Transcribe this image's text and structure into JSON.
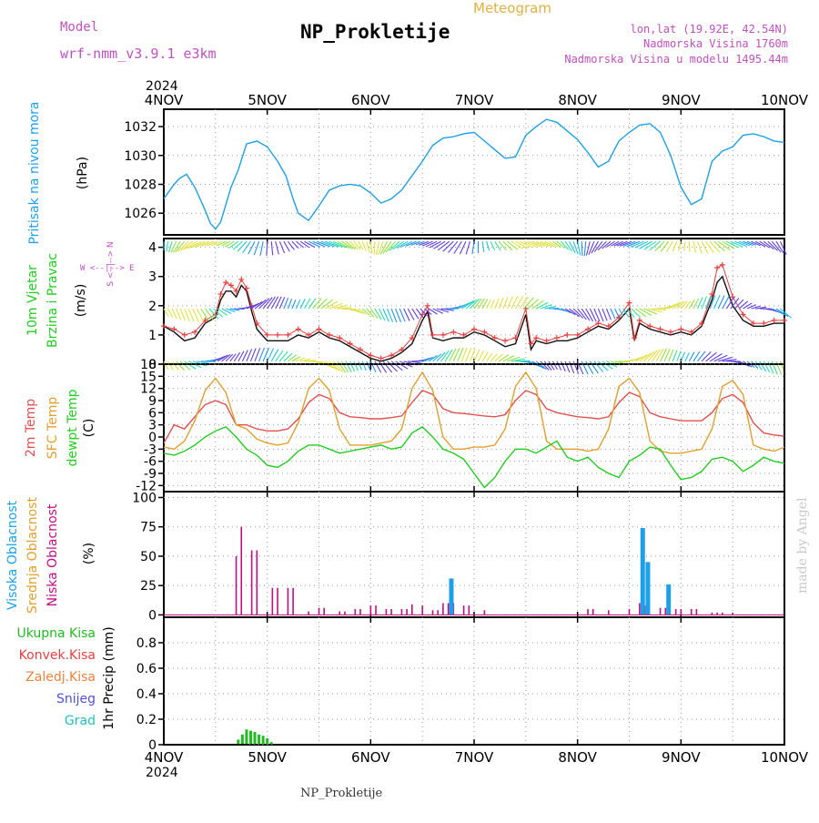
{
  "header": {
    "model_label": "Model",
    "model_name": "wrf-nmm_v3.9.1 e3km",
    "product": "Meteogram",
    "station": "NP_Prokletije",
    "lonlat": "lon,lat (19.92E, 42.54N)",
    "elevation": "Nadmorska Visina 1760m",
    "model_elevation": "Nadmorska Visina u modelu 1495.44m",
    "credit": "made by Angel",
    "year": "2024",
    "footer_station": "NP_Prokletije"
  },
  "colors": {
    "pressure": "#1ea0e8",
    "wind_label": "#22cc22",
    "wind_speed_obs": "#111111",
    "wind_gust": "#e84040",
    "temp2m": "#e05050",
    "sfc_temp": "#e0a030",
    "dewpt": "#22cc22",
    "high_cloud": "#1ea0e8",
    "mid_cloud": "#e0a030",
    "low_cloud": "#c01080",
    "total_precip": "#22bb22",
    "conv_precip": "#e84040",
    "frozen_precip": "#f08040",
    "snow": "#5050e0",
    "hail": "#20c0c0",
    "title_purple": "#c050c0",
    "meteogram_orange": "#e0b040"
  },
  "chart_data": [
    {
      "type": "line",
      "title": "NP_Prokletije",
      "ylabel_left": "Pritisak na nivou mora",
      "ylabel_units": "(hPa)",
      "x_tick_labels": [
        "4NOV",
        "5NOV",
        "6NOV",
        "7NOV",
        "8NOV",
        "9NOV",
        "10NOV"
      ],
      "x_range_days": [
        0,
        6
      ],
      "ylim": [
        1024.5,
        1033.2
      ],
      "yticks": [
        1026,
        1028,
        1030,
        1032
      ],
      "grid": true,
      "series": [
        {
          "name": "Pritisak na nivou mora",
          "x": [
            0,
            0.1,
            0.15,
            0.22,
            0.3,
            0.4,
            0.45,
            0.5,
            0.55,
            0.6,
            0.65,
            0.72,
            0.8,
            0.9,
            1.0,
            1.1,
            1.18,
            1.25,
            1.3,
            1.4,
            1.5,
            1.6,
            1.7,
            1.8,
            1.9,
            2.0,
            2.1,
            2.2,
            2.3,
            2.4,
            2.5,
            2.6,
            2.7,
            2.8,
            2.9,
            3.0,
            3.1,
            3.2,
            3.3,
            3.4,
            3.5,
            3.6,
            3.7,
            3.8,
            3.9,
            4.0,
            4.1,
            4.2,
            4.3,
            4.4,
            4.5,
            4.6,
            4.7,
            4.8,
            4.9,
            5.0,
            5.1,
            5.2,
            5.3,
            5.4,
            5.5,
            5.6,
            5.7,
            5.8,
            5.9,
            6.0
          ],
          "y": [
            1027.0,
            1028.0,
            1028.4,
            1028.7,
            1027.8,
            1026.2,
            1025.3,
            1024.9,
            1025.4,
            1026.6,
            1027.8,
            1029.0,
            1030.8,
            1031.0,
            1030.6,
            1029.6,
            1028.6,
            1027.0,
            1026.0,
            1025.5,
            1026.5,
            1027.6,
            1027.9,
            1028.0,
            1027.9,
            1027.4,
            1026.7,
            1027.0,
            1027.6,
            1028.6,
            1029.6,
            1030.7,
            1031.2,
            1031.3,
            1031.5,
            1031.6,
            1031.0,
            1030.4,
            1029.8,
            1029.9,
            1031.4,
            1032.0,
            1032.5,
            1032.3,
            1031.7,
            1031.1,
            1030.2,
            1029.2,
            1029.6,
            1031.0,
            1031.6,
            1032.1,
            1032.2,
            1031.6,
            1030.0,
            1027.8,
            1026.6,
            1027.0,
            1029.6,
            1030.3,
            1030.6,
            1031.4,
            1031.5,
            1031.3,
            1031.0,
            1030.9
          ]
        }
      ]
    },
    {
      "type": "line",
      "ylabel_left": "10m Vjetar Brzina i Pravac",
      "ylabel_units": "(m/s)",
      "compass": "W <--|--> E",
      "compass_ns": "S <--|--> N",
      "ylim": [
        0,
        4.3
      ],
      "yticks": [
        0,
        1,
        2,
        3,
        4
      ],
      "grid": true,
      "series": [
        {
          "name": "wind speed",
          "x": [
            0,
            0.1,
            0.2,
            0.3,
            0.4,
            0.5,
            0.55,
            0.6,
            0.65,
            0.7,
            0.75,
            0.8,
            0.85,
            0.9,
            1.0,
            1.1,
            1.2,
            1.3,
            1.4,
            1.5,
            1.6,
            1.7,
            1.8,
            1.9,
            2.0,
            2.1,
            2.2,
            2.3,
            2.4,
            2.5,
            2.55,
            2.6,
            2.7,
            2.8,
            2.9,
            3.0,
            3.1,
            3.2,
            3.3,
            3.4,
            3.5,
            3.55,
            3.6,
            3.7,
            3.8,
            3.9,
            4.0,
            4.1,
            4.2,
            4.3,
            4.4,
            4.5,
            4.55,
            4.6,
            4.7,
            4.8,
            4.9,
            5.0,
            5.1,
            5.2,
            5.3,
            5.35,
            5.4,
            5.5,
            5.6,
            5.7,
            5.8,
            5.9,
            6.0
          ],
          "y": [
            1.3,
            1.1,
            0.8,
            0.9,
            1.4,
            1.6,
            2.2,
            2.5,
            2.5,
            2.3,
            2.7,
            2.5,
            1.8,
            1.2,
            0.8,
            0.8,
            0.8,
            1.0,
            0.9,
            1.1,
            0.9,
            0.8,
            0.6,
            0.4,
            0.2,
            0.1,
            0.2,
            0.4,
            0.7,
            1.5,
            1.8,
            0.9,
            0.8,
            0.9,
            0.9,
            1.1,
            1.0,
            0.8,
            0.6,
            0.7,
            1.7,
            0.5,
            0.8,
            0.7,
            0.8,
            0.8,
            0.9,
            1.1,
            1.3,
            1.2,
            1.5,
            1.9,
            0.8,
            1.4,
            1.2,
            1.1,
            1.0,
            1.1,
            1.0,
            1.3,
            2.2,
            2.8,
            3.0,
            2.0,
            1.5,
            1.3,
            1.3,
            1.4,
            1.4
          ]
        },
        {
          "name": "gust markers",
          "x": [
            0,
            0.1,
            0.2,
            0.3,
            0.4,
            0.5,
            0.55,
            0.6,
            0.65,
            0.7,
            0.75,
            0.8,
            0.85,
            0.9,
            1.0,
            1.1,
            1.2,
            1.3,
            1.4,
            1.5,
            1.6,
            1.7,
            1.8,
            1.9,
            2.0,
            2.1,
            2.2,
            2.3,
            2.4,
            2.5,
            2.55,
            2.6,
            2.7,
            2.8,
            2.9,
            3.0,
            3.1,
            3.2,
            3.3,
            3.4,
            3.5,
            3.55,
            3.6,
            3.7,
            3.8,
            3.9,
            4.0,
            4.1,
            4.2,
            4.3,
            4.4,
            4.5,
            4.55,
            4.6,
            4.7,
            4.8,
            4.9,
            5.0,
            5.1,
            5.2,
            5.3,
            5.35,
            5.4,
            5.5,
            5.6,
            5.7,
            5.8,
            5.9,
            6.0
          ],
          "y": [
            1.3,
            1.2,
            1.0,
            1.1,
            1.5,
            1.7,
            2.4,
            2.8,
            2.7,
            2.5,
            2.9,
            2.6,
            2.0,
            1.4,
            1.0,
            1.0,
            1.0,
            1.2,
            1.0,
            1.2,
            1.0,
            0.9,
            0.7,
            0.5,
            0.3,
            0.2,
            0.3,
            0.5,
            0.9,
            1.7,
            2.0,
            1.0,
            1.0,
            1.1,
            1.0,
            1.2,
            1.1,
            0.9,
            0.8,
            0.9,
            1.9,
            0.7,
            0.9,
            0.8,
            0.9,
            1.0,
            1.0,
            1.2,
            1.4,
            1.3,
            1.6,
            2.1,
            0.9,
            1.5,
            1.3,
            1.2,
            1.1,
            1.2,
            1.1,
            1.4,
            2.4,
            3.3,
            3.4,
            2.3,
            1.7,
            1.4,
            1.4,
            1.5,
            1.5
          ]
        }
      ],
      "arrow_rows_y": [
        4.2,
        1.9,
        0.1
      ]
    },
    {
      "type": "line",
      "ylabel_left": [
        "2m Temp",
        "SFC Temp",
        "dewpt Temp"
      ],
      "ylabel_units": "(C)",
      "ylim": [
        -13.5,
        18
      ],
      "yticks": [
        -12,
        -9,
        -6,
        -3,
        0,
        3,
        6,
        9,
        12,
        15,
        18
      ],
      "grid": true,
      "series": [
        {
          "name": "2m Temp",
          "x": [
            0,
            0.1,
            0.2,
            0.3,
            0.4,
            0.5,
            0.6,
            0.7,
            0.8,
            0.9,
            1.0,
            1.1,
            1.2,
            1.3,
            1.4,
            1.5,
            1.6,
            1.7,
            1.8,
            1.9,
            2.0,
            2.1,
            2.2,
            2.3,
            2.4,
            2.5,
            2.6,
            2.7,
            2.8,
            2.9,
            3.0,
            3.1,
            3.2,
            3.3,
            3.4,
            3.5,
            3.6,
            3.7,
            3.8,
            3.9,
            4.0,
            4.1,
            4.2,
            4.3,
            4.4,
            4.5,
            4.6,
            4.7,
            4.8,
            4.9,
            5.0,
            5.1,
            5.2,
            5.3,
            5.4,
            5.5,
            5.6,
            5.7,
            5.8,
            5.9,
            6.0
          ],
          "y": [
            -1.5,
            3.0,
            2.0,
            5.0,
            8.0,
            9.0,
            8.0,
            3.0,
            3.0,
            2.0,
            1.5,
            1.5,
            2.0,
            4.5,
            8.5,
            10.5,
            9.5,
            6.0,
            5.0,
            4.8,
            4.5,
            4.5,
            4.8,
            5.2,
            8.5,
            11.5,
            10.5,
            7.0,
            6.0,
            5.8,
            5.5,
            5.2,
            5.0,
            5.5,
            9.0,
            11.5,
            10.5,
            7.0,
            6.0,
            5.5,
            5.0,
            4.8,
            4.5,
            5.0,
            8.5,
            11.0,
            10.0,
            6.0,
            5.0,
            4.5,
            4.0,
            4.0,
            4.0,
            6.0,
            9.5,
            10.5,
            8.5,
            3.5,
            1.0,
            0.5,
            0.2
          ]
        },
        {
          "name": "SFC Temp",
          "x": [
            0,
            0.1,
            0.2,
            0.3,
            0.4,
            0.5,
            0.6,
            0.7,
            0.8,
            0.9,
            1.0,
            1.1,
            1.2,
            1.3,
            1.4,
            1.5,
            1.6,
            1.7,
            1.8,
            1.9,
            2.0,
            2.1,
            2.2,
            2.3,
            2.4,
            2.5,
            2.6,
            2.7,
            2.8,
            2.9,
            3.0,
            3.1,
            3.2,
            3.3,
            3.4,
            3.5,
            3.6,
            3.7,
            3.8,
            3.9,
            4.0,
            4.1,
            4.2,
            4.3,
            4.4,
            4.5,
            4.6,
            4.7,
            4.8,
            4.9,
            5.0,
            5.1,
            5.2,
            5.3,
            5.4,
            5.5,
            5.6,
            5.7,
            5.8,
            5.9,
            6.0
          ],
          "y": [
            -2.5,
            -3.0,
            -1.0,
            4.0,
            11.5,
            14.5,
            11.0,
            3.0,
            2.0,
            -0.5,
            -1.5,
            -2.0,
            -1.5,
            3.5,
            12.0,
            14.5,
            11.5,
            2.0,
            -2.0,
            -2.0,
            -2.0,
            -1.5,
            -1.0,
            2.0,
            12.0,
            16.0,
            11.5,
            0.0,
            -3.0,
            -3.0,
            -2.5,
            -2.5,
            -2.0,
            2.0,
            12.5,
            16.0,
            12.0,
            -1.0,
            -3.0,
            -3.0,
            -3.0,
            -3.5,
            -3.0,
            2.0,
            12.5,
            14.5,
            11.0,
            -1.0,
            -3.5,
            -4.0,
            -4.0,
            -3.5,
            -3.0,
            2.0,
            12.5,
            14.0,
            10.5,
            -2.0,
            -3.0,
            -3.5,
            -2.5
          ]
        },
        {
          "name": "dewpt Temp",
          "x": [
            0,
            0.1,
            0.2,
            0.3,
            0.4,
            0.5,
            0.6,
            0.7,
            0.8,
            0.9,
            1.0,
            1.1,
            1.2,
            1.3,
            1.4,
            1.5,
            1.6,
            1.7,
            1.8,
            1.9,
            2.0,
            2.1,
            2.2,
            2.3,
            2.4,
            2.5,
            2.6,
            2.7,
            2.8,
            2.9,
            3.0,
            3.1,
            3.2,
            3.3,
            3.4,
            3.5,
            3.6,
            3.7,
            3.8,
            3.9,
            4.0,
            4.1,
            4.2,
            4.3,
            4.4,
            4.5,
            4.6,
            4.7,
            4.8,
            4.9,
            5.0,
            5.1,
            5.2,
            5.3,
            5.4,
            5.5,
            5.6,
            5.7,
            5.8,
            5.9,
            6.0
          ],
          "y": [
            -4.0,
            -4.5,
            -3.5,
            -2.0,
            0.0,
            1.5,
            2.5,
            0.0,
            -3.0,
            -4.5,
            -7.0,
            -7.5,
            -6.0,
            -3.5,
            -2.0,
            -2.0,
            -3.0,
            -4.0,
            -3.5,
            -3.0,
            -2.5,
            -2.0,
            -3.0,
            -2.5,
            1.0,
            2.5,
            0.0,
            -3.0,
            -4.0,
            -5.5,
            -9.0,
            -12.5,
            -10.0,
            -6.0,
            -3.0,
            -3.0,
            -4.0,
            -2.5,
            -1.0,
            -5.0,
            -6.0,
            -5.0,
            -7.5,
            -9.0,
            -10.0,
            -6.0,
            -4.5,
            -2.5,
            -3.0,
            -7.0,
            -10.5,
            -10.0,
            -8.5,
            -5.5,
            -5.0,
            -6.0,
            -8.5,
            -7.0,
            -5.0,
            -6.0,
            -6.5
          ]
        }
      ]
    },
    {
      "type": "bar",
      "ylabel_left": [
        "Visoka Oblacnost",
        "Srednja Oblacnost",
        "Niska Oblacnost"
      ],
      "ylabel_units": "(%)",
      "ylim": [
        -2,
        105
      ],
      "yticks": [
        0,
        25,
        50,
        75,
        100
      ],
      "grid": true,
      "series": [
        {
          "name": "Niska Oblacnost",
          "x": [
            0.7,
            0.75,
            0.85,
            0.9,
            1.05,
            1.1,
            1.2,
            1.25,
            1.4,
            1.5,
            1.55,
            1.7,
            1.75,
            1.85,
            1.9,
            2.0,
            2.05,
            2.15,
            2.2,
            2.3,
            2.35,
            2.4,
            2.5,
            2.6,
            2.65,
            2.7,
            2.75,
            2.8,
            2.9,
            2.95,
            3.1,
            4.1,
            4.15,
            4.3,
            4.5,
            4.6,
            4.65,
            4.8,
            4.85,
            4.95,
            5.0,
            5.1,
            5.15,
            5.3,
            5.35,
            5.4,
            5.5
          ],
          "y": [
            50,
            75,
            55,
            55,
            23,
            23,
            23,
            23,
            3,
            6,
            6,
            3,
            3,
            5,
            5,
            8,
            8,
            5,
            5,
            5,
            5,
            9,
            8,
            4,
            4,
            10,
            10,
            10,
            8,
            8,
            4,
            5,
            5,
            4,
            5,
            10,
            8,
            6,
            6,
            5,
            5,
            5,
            5,
            2,
            2,
            2,
            2
          ]
        },
        {
          "name": "Visoka Oblacnost",
          "x": [
            2.78,
            4.63,
            4.68,
            4.88
          ],
          "y": [
            31,
            74,
            45,
            26
          ]
        }
      ]
    },
    {
      "type": "bar",
      "ylabel_left": "1hr Precip (mm)",
      "legend": [
        "Ukupna Kisa",
        "Konvek.Kisa",
        "Zaledj.Kisa",
        "Snijeg",
        "Grad"
      ],
      "ylim": [
        0,
        1.0
      ],
      "yticks": [
        0,
        0.2,
        0.4,
        0.6,
        0.8
      ],
      "grid": true,
      "series": [
        {
          "name": "Ukupna Kisa",
          "x": [
            0.72,
            0.76,
            0.8,
            0.84,
            0.88,
            0.92,
            0.96,
            1.0,
            1.04
          ],
          "y": [
            0.04,
            0.08,
            0.12,
            0.11,
            0.1,
            0.08,
            0.07,
            0.05,
            0.02
          ]
        }
      ]
    }
  ]
}
